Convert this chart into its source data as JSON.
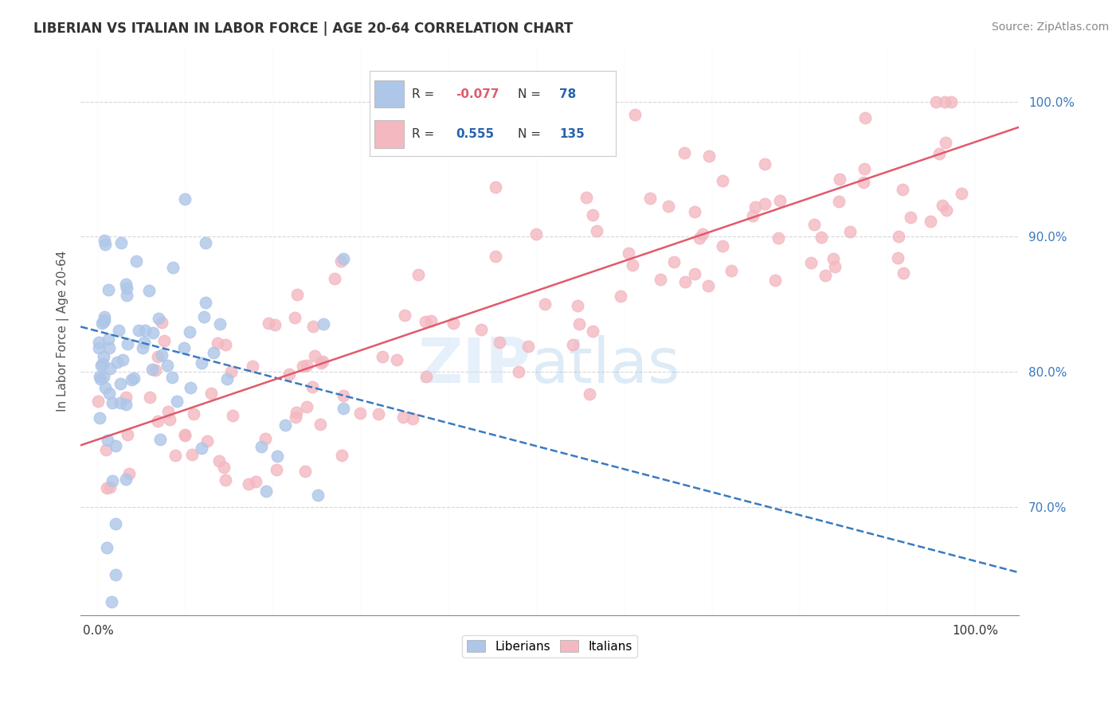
{
  "title": "LIBERIAN VS ITALIAN IN LABOR FORCE | AGE 20-64 CORRELATION CHART",
  "source": "Source: ZipAtlas.com",
  "ylabel": "In Labor Force | Age 20-64",
  "ytick_vals": [
    70,
    80,
    90,
    100
  ],
  "ytick_labels": [
    "70.0%",
    "80.0%",
    "90.0%",
    "100.0%"
  ],
  "xtick_vals": [
    0,
    100
  ],
  "xtick_labels": [
    "0.0%",
    "100.0%"
  ],
  "legend_entries": [
    {
      "label": "Liberians",
      "R": "-0.077",
      "N": "78",
      "color": "#aec6e8",
      "line_color": "#3a7abf",
      "line_style": "dashed"
    },
    {
      "label": "Italians",
      "R": "0.555",
      "N": "135",
      "color": "#f4b8c1",
      "line_color": "#e05a6d",
      "line_style": "solid"
    }
  ],
  "watermark": "ZIPatlas",
  "background_color": "#ffffff",
  "grid_color": "#cccccc",
  "xlim": [
    -2,
    105
  ],
  "ylim": [
    62,
    104
  ],
  "liberian_trend_x0": 0,
  "liberian_trend_y0": 83,
  "liberian_trend_x1": 100,
  "liberian_trend_y1": 66,
  "italian_trend_x0": 0,
  "italian_trend_y0": 75,
  "italian_trend_x1": 100,
  "italian_trend_y1": 97
}
